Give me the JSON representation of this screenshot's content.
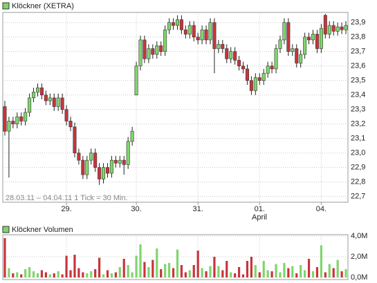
{
  "chart_data": [
    {
      "type": "candlestick",
      "legend": "Klöckner (XETRA)",
      "note": "28.03.11 – 04.04.11   1 Tick = 30 Min.",
      "month_label": "April",
      "up_color": "#7fd56c",
      "down_color": "#c8343c",
      "categories": [
        null,
        null,
        null,
        null,
        null,
        null,
        null,
        null,
        null,
        null,
        null,
        null,
        null,
        null,
        null,
        "29.",
        null,
        null,
        null,
        null,
        null,
        null,
        null,
        null,
        null,
        null,
        null,
        null,
        null,
        null,
        null,
        null,
        "30.",
        null,
        null,
        null,
        null,
        null,
        null,
        null,
        null,
        null,
        null,
        null,
        null,
        null,
        null,
        "31.",
        null,
        null,
        null,
        null,
        null,
        null,
        null,
        null,
        null,
        null,
        null,
        null,
        null,
        null,
        "01.",
        null,
        null,
        null,
        null,
        null,
        null,
        null,
        null,
        null,
        null,
        null,
        null,
        null,
        null,
        "04.",
        null,
        null,
        null,
        null,
        null,
        null
      ],
      "open": [
        23.32,
        23.15,
        23.22,
        23.2,
        23.25,
        23.22,
        23.28,
        23.38,
        23.42,
        23.45,
        23.4,
        23.36,
        23.38,
        23.32,
        23.38,
        23.3,
        23.22,
        23.18,
        23.0,
        22.95,
        22.85,
        22.95,
        23.0,
        22.9,
        22.82,
        22.9,
        22.86,
        22.95,
        22.93,
        22.95,
        22.92,
        23.08,
        23.4,
        23.6,
        23.78,
        23.65,
        23.72,
        23.68,
        23.74,
        23.7,
        23.85,
        23.9,
        23.88,
        23.92,
        23.85,
        23.82,
        23.88,
        23.8,
        23.78,
        23.85,
        23.78,
        23.9,
        23.72,
        23.75,
        23.72,
        23.65,
        23.7,
        23.64,
        23.6,
        23.58,
        23.5,
        23.43,
        23.52,
        23.5,
        23.55,
        23.6,
        23.58,
        23.72,
        23.78,
        23.9,
        23.7,
        23.72,
        23.62,
        23.68,
        23.8,
        23.78,
        23.82,
        23.72,
        23.95,
        23.82,
        23.88,
        23.84,
        23.87,
        23.85
      ],
      "high": [
        23.36,
        23.25,
        23.25,
        23.28,
        23.28,
        23.31,
        23.41,
        23.45,
        23.48,
        23.48,
        23.43,
        23.41,
        23.41,
        23.41,
        23.41,
        23.33,
        23.25,
        23.21,
        23.03,
        22.98,
        22.98,
        23.03,
        23.03,
        22.93,
        22.93,
        22.93,
        22.98,
        22.98,
        22.98,
        22.98,
        23.11,
        23.18,
        23.63,
        23.81,
        23.81,
        23.75,
        23.75,
        23.77,
        23.77,
        23.88,
        23.93,
        23.93,
        23.95,
        23.95,
        23.88,
        23.91,
        23.91,
        23.83,
        23.88,
        23.88,
        23.93,
        23.93,
        23.78,
        23.78,
        23.75,
        23.73,
        23.73,
        23.67,
        23.63,
        23.61,
        23.53,
        23.55,
        23.55,
        23.58,
        23.63,
        23.63,
        23.75,
        23.81,
        23.93,
        23.93,
        23.75,
        23.75,
        23.71,
        23.83,
        23.83,
        23.85,
        23.85,
        23.89,
        23.96,
        23.91,
        23.91,
        23.9,
        23.9,
        23.91
      ],
      "low": [
        23.12,
        22.83,
        23.17,
        23.17,
        23.19,
        23.19,
        23.25,
        23.35,
        23.39,
        23.37,
        23.33,
        23.33,
        23.29,
        23.29,
        23.27,
        23.19,
        23.15,
        22.97,
        22.92,
        22.82,
        22.82,
        22.92,
        22.87,
        22.78,
        22.79,
        22.83,
        22.83,
        22.9,
        22.9,
        22.85,
        22.89,
        23.05,
        23.4,
        23.57,
        23.62,
        23.62,
        23.65,
        23.65,
        23.67,
        23.67,
        23.82,
        23.85,
        23.85,
        23.82,
        23.79,
        23.79,
        23.77,
        23.75,
        23.75,
        23.75,
        23.75,
        23.55,
        23.69,
        23.69,
        23.62,
        23.62,
        23.61,
        23.57,
        23.55,
        23.47,
        23.4,
        23.4,
        23.47,
        23.47,
        23.52,
        23.55,
        23.55,
        23.69,
        23.75,
        23.67,
        23.67,
        23.59,
        23.59,
        23.65,
        23.75,
        23.75,
        23.69,
        23.69,
        23.79,
        23.79,
        23.81,
        23.81,
        23.82,
        23.82
      ],
      "close": [
        23.15,
        23.22,
        23.2,
        23.25,
        23.22,
        23.28,
        23.38,
        23.42,
        23.45,
        23.4,
        23.36,
        23.38,
        23.32,
        23.38,
        23.3,
        23.22,
        23.18,
        23.0,
        22.95,
        22.85,
        22.95,
        23.0,
        22.9,
        22.82,
        22.9,
        22.86,
        22.95,
        22.93,
        22.95,
        22.92,
        23.08,
        23.15,
        23.6,
        23.78,
        23.65,
        23.72,
        23.68,
        23.74,
        23.7,
        23.85,
        23.9,
        23.88,
        23.92,
        23.85,
        23.82,
        23.88,
        23.8,
        23.78,
        23.85,
        23.78,
        23.9,
        23.72,
        23.75,
        23.72,
        23.65,
        23.7,
        23.64,
        23.6,
        23.58,
        23.5,
        23.43,
        23.52,
        23.5,
        23.55,
        23.6,
        23.58,
        23.72,
        23.78,
        23.9,
        23.7,
        23.72,
        23.62,
        23.68,
        23.8,
        23.78,
        23.82,
        23.72,
        23.86,
        23.82,
        23.88,
        23.84,
        23.87,
        23.85,
        23.88
      ],
      "ylim": [
        22.66,
        23.97
      ],
      "yticks": [
        {
          "value": 22.7,
          "label": "22,7"
        },
        {
          "value": 22.8,
          "label": "22,8"
        },
        {
          "value": 22.9,
          "label": "22,9"
        },
        {
          "value": 23.0,
          "label": "23,0"
        },
        {
          "value": 23.1,
          "label": "23,1"
        },
        {
          "value": 23.2,
          "label": "23,2"
        },
        {
          "value": 23.3,
          "label": "23,3"
        },
        {
          "value": 23.4,
          "label": "23,4"
        },
        {
          "value": 23.5,
          "label": "23,5"
        },
        {
          "value": 23.6,
          "label": "23,6"
        },
        {
          "value": 23.7,
          "label": "23,7"
        },
        {
          "value": 23.8,
          "label": "23,8"
        },
        {
          "value": 23.9,
          "label": "23,9"
        }
      ],
      "grid": true
    },
    {
      "type": "bar",
      "legend": "Klöckner Volumen",
      "values": [
        3800000,
        900000,
        400000,
        500000,
        300000,
        800000,
        1000000,
        600000,
        400000,
        700000,
        500000,
        300000,
        400000,
        600000,
        300000,
        2100000,
        700000,
        2200000,
        900000,
        500000,
        400000,
        600000,
        800000,
        1900000,
        300000,
        700000,
        400000,
        500000,
        1000000,
        1800000,
        1200000,
        500000,
        2100000,
        3200000,
        1500000,
        1000000,
        1700000,
        2800000,
        800000,
        1300000,
        1400000,
        900000,
        2700000,
        1200000,
        500000,
        700000,
        1200000,
        2600000,
        900000,
        600000,
        1100000,
        2000000,
        1100000,
        700000,
        1600000,
        500000,
        400000,
        1000000,
        300000,
        1600000,
        2000000,
        1200000,
        500000,
        1600000,
        700000,
        600000,
        1300000,
        500000,
        1400000,
        900000,
        1100000,
        400000,
        1200000,
        700000,
        1800000,
        600000,
        1000000,
        3100000,
        500000,
        1300000,
        900000,
        1700000,
        600000,
        800000
      ],
      "ylim": [
        0,
        4000000
      ],
      "yticks": [
        {
          "value": 0,
          "label": "0,0M"
        },
        {
          "value": 2000000,
          "label": "2,0M"
        },
        {
          "value": 4000000,
          "label": "4,0M"
        }
      ],
      "grid": true
    }
  ]
}
